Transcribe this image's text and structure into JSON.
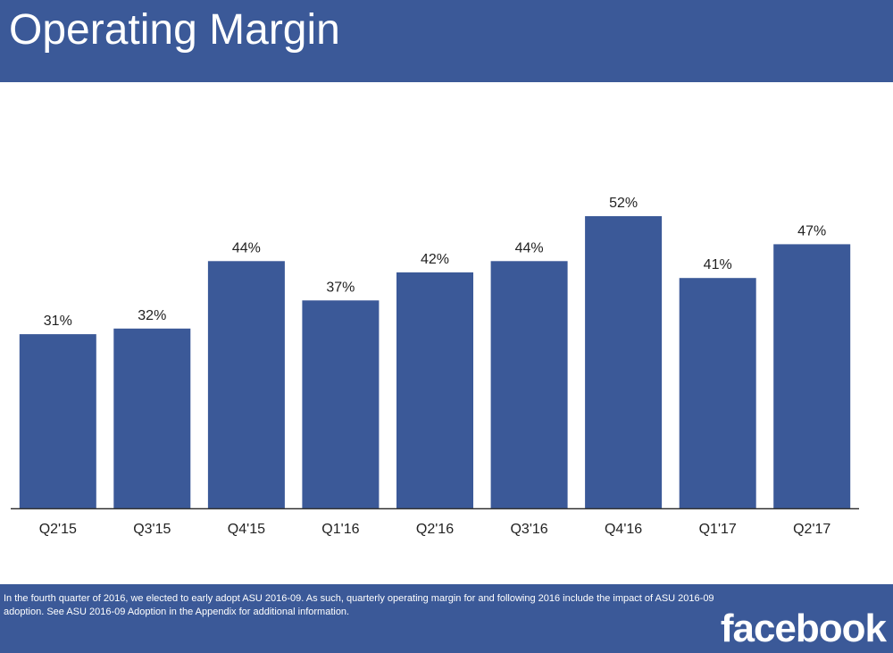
{
  "slide": {
    "title": "Operating Margin",
    "footnote": "In the fourth quarter of 2016, we elected to early adopt ASU 2016-09. As such, quarterly operating margin for and following 2016 include the impact of ASU 2016-09 adoption. See ASU 2016-09 Adoption in the Appendix for additional information.",
    "logo_text": "facebook"
  },
  "colors": {
    "brand": "#3b5998",
    "bar": "#3b5998",
    "axis": "#333333",
    "text": "#222222"
  },
  "chart_data": {
    "type": "bar",
    "categories": [
      "Q2'15",
      "Q3'15",
      "Q4'15",
      "Q1'16",
      "Q2'16",
      "Q3'16",
      "Q4'16",
      "Q1'17",
      "Q2'17"
    ],
    "values": [
      31,
      32,
      44,
      37,
      42,
      44,
      52,
      41,
      47
    ],
    "data_labels": [
      "31%",
      "32%",
      "44%",
      "37%",
      "42%",
      "44%",
      "52%",
      "41%",
      "47%"
    ],
    "unit": "%",
    "title": "",
    "xlabel": "",
    "ylabel": "",
    "ylim": [
      0,
      52
    ],
    "grid": false,
    "legend": "none"
  }
}
